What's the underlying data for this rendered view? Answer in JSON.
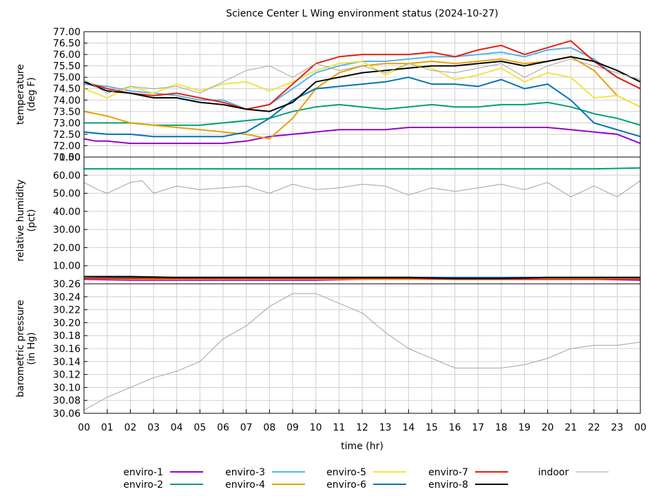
{
  "chart_data": {
    "type": "line",
    "title": "Science Center L Wing environment status (2024-10-27)",
    "xlabel": "time (hr)",
    "x_ticks": [
      "00",
      "01",
      "02",
      "03",
      "04",
      "05",
      "06",
      "07",
      "08",
      "09",
      "10",
      "11",
      "12",
      "13",
      "14",
      "15",
      "16",
      "17",
      "18",
      "19",
      "20",
      "21",
      "22",
      "23",
      "00"
    ],
    "xlim": [
      0,
      24
    ],
    "legend_position": "bottom",
    "grid": true,
    "colors": {
      "enviro-1": "#9400d3",
      "enviro-2": "#009e73",
      "enviro-3": "#56b4e9",
      "enviro-4": "#e69f00",
      "enviro-5": "#f0e442",
      "enviro-6": "#0072b2",
      "enviro-7": "#e51e10",
      "enviro-8": "#000000",
      "indoor": "#a0a0a0"
    },
    "legend": [
      "enviro-1",
      "enviro-2",
      "enviro-3",
      "enviro-4",
      "enviro-5",
      "enviro-6",
      "enviro-7",
      "enviro-8",
      "indoor"
    ],
    "panels": [
      {
        "ylabel": [
          "temperature",
          "(deg F)"
        ],
        "ylim": [
          71.5,
          77.0
        ],
        "y_ticks": [
          "71.50",
          "72.00",
          "72.50",
          "73.00",
          "73.50",
          "74.00",
          "74.50",
          "75.00",
          "75.50",
          "76.00",
          "76.50",
          "77.00"
        ],
        "tick_values": [
          71.5,
          72.0,
          72.5,
          73.0,
          73.5,
          74.0,
          74.5,
          75.0,
          75.5,
          76.0,
          76.5,
          77.0
        ],
        "series": [
          {
            "name": "enviro-1",
            "x": [
              0,
              0.5,
              1,
              2,
              3,
              4,
              5,
              6,
              7,
              8,
              9,
              10,
              11,
              12,
              13,
              14,
              15,
              16,
              17,
              18,
              19,
              20,
              21,
              22,
              23,
              24
            ],
            "y": [
              72.3,
              72.2,
              72.2,
              72.1,
              72.1,
              72.1,
              72.1,
              72.1,
              72.2,
              72.4,
              72.5,
              72.6,
              72.7,
              72.7,
              72.7,
              72.8,
              72.8,
              72.8,
              72.8,
              72.8,
              72.8,
              72.8,
              72.7,
              72.6,
              72.5,
              72.1
            ]
          },
          {
            "name": "enviro-2",
            "x": [
              0,
              1,
              2,
              3,
              4,
              5,
              6,
              7,
              8,
              9,
              10,
              11,
              12,
              13,
              14,
              15,
              16,
              17,
              18,
              19,
              20,
              21,
              22,
              23,
              24
            ],
            "y": [
              73.0,
              73.0,
              73.0,
              72.9,
              72.9,
              72.9,
              73.0,
              73.1,
              73.2,
              73.5,
              73.7,
              73.8,
              73.7,
              73.6,
              73.7,
              73.8,
              73.7,
              73.7,
              73.8,
              73.8,
              73.9,
              73.7,
              73.4,
              73.2,
              72.9
            ]
          },
          {
            "name": "enviro-3",
            "x": [
              0,
              1,
              2,
              3,
              4,
              5,
              6,
              7,
              8,
              9,
              10,
              11,
              12,
              13,
              14,
              15,
              16,
              17,
              18,
              19,
              20,
              21,
              22,
              23,
              24
            ],
            "y": [
              74.7,
              74.6,
              74.4,
              74.3,
              74.2,
              74.0,
              74.0,
              73.6,
              73.8,
              74.5,
              75.2,
              75.5,
              75.7,
              75.7,
              75.8,
              75.9,
              75.9,
              76.0,
              76.1,
              75.9,
              76.2,
              76.3,
              75.8,
              75.0,
              74.5
            ]
          },
          {
            "name": "enviro-4",
            "x": [
              0,
              1,
              2,
              3,
              4,
              5,
              6,
              7,
              8,
              9,
              10,
              11,
              12,
              13,
              14,
              15,
              16,
              17,
              18,
              19,
              20,
              21,
              22,
              23,
              24
            ],
            "y": [
              73.5,
              73.3,
              73.0,
              72.9,
              72.8,
              72.7,
              72.6,
              72.5,
              72.3,
              73.2,
              74.5,
              75.2,
              75.5,
              75.6,
              75.6,
              75.7,
              75.6,
              75.7,
              75.8,
              75.6,
              75.7,
              75.9,
              75.3,
              74.2,
              73.7
            ]
          },
          {
            "name": "enviro-5",
            "x": [
              0,
              1,
              2,
              3,
              4,
              5,
              6,
              7,
              8,
              9,
              10,
              11,
              12,
              13,
              14,
              15,
              16,
              17,
              18,
              19,
              20,
              21,
              22,
              23,
              24
            ],
            "y": [
              74.5,
              74.1,
              74.6,
              74.3,
              74.7,
              74.4,
              74.7,
              74.8,
              74.4,
              74.8,
              75.3,
              75.6,
              75.7,
              75.1,
              75.6,
              75.4,
              74.9,
              75.1,
              75.4,
              74.8,
              75.2,
              75.0,
              74.1,
              74.2,
              73.7
            ]
          },
          {
            "name": "enviro-6",
            "x": [
              0,
              1,
              2,
              3,
              4,
              5,
              6,
              7,
              8,
              9,
              10,
              11,
              12,
              13,
              14,
              15,
              16,
              17,
              18,
              19,
              20,
              21,
              22,
              23,
              24
            ],
            "y": [
              72.6,
              72.5,
              72.5,
              72.4,
              72.4,
              72.4,
              72.4,
              72.6,
              73.2,
              74.0,
              74.5,
              74.6,
              74.7,
              74.8,
              75.0,
              74.7,
              74.7,
              74.6,
              74.9,
              74.5,
              74.7,
              74.0,
              73.0,
              72.7,
              72.4
            ]
          },
          {
            "name": "enviro-7",
            "x": [
              0,
              1,
              2,
              3,
              4,
              5,
              6,
              7,
              8,
              9,
              10,
              11,
              12,
              13,
              14,
              15,
              16,
              17,
              18,
              19,
              20,
              21,
              22,
              23,
              24
            ],
            "y": [
              74.8,
              74.5,
              74.3,
              74.2,
              74.3,
              74.1,
              73.9,
              73.6,
              73.8,
              74.7,
              75.6,
              75.9,
              76.0,
              76.0,
              76.0,
              76.1,
              75.9,
              76.2,
              76.4,
              76.0,
              76.3,
              76.6,
              75.7,
              75.0,
              74.5
            ]
          },
          {
            "name": "enviro-8",
            "x": [
              0,
              1,
              2,
              3,
              4,
              5,
              6,
              7,
              8,
              9,
              10,
              11,
              12,
              13,
              14,
              15,
              16,
              17,
              18,
              19,
              20,
              21,
              22,
              23,
              24
            ],
            "y": [
              74.8,
              74.4,
              74.3,
              74.1,
              74.1,
              73.9,
              73.8,
              73.6,
              73.5,
              73.9,
              74.8,
              75.0,
              75.2,
              75.3,
              75.4,
              75.5,
              75.5,
              75.6,
              75.7,
              75.5,
              75.7,
              75.9,
              75.7,
              75.3,
              74.8
            ]
          },
          {
            "name": "indoor",
            "x": [
              0,
              1,
              2,
              3,
              4,
              5,
              6,
              7,
              8,
              9,
              10,
              11,
              12,
              13,
              14,
              15,
              16,
              17,
              18,
              19,
              20,
              21,
              22,
              23,
              24
            ],
            "y": [
              74.9,
              74.3,
              74.6,
              74.5,
              74.6,
              74.3,
              74.8,
              75.3,
              75.5,
              75.0,
              75.6,
              75.3,
              75.5,
              75.2,
              75.6,
              75.3,
              75.2,
              75.4,
              75.6,
              75.0,
              75.5,
              75.8,
              75.5,
              75.2,
              74.9
            ]
          }
        ]
      },
      {
        "ylabel": [
          "relative humidity",
          "(pct)"
        ],
        "ylim": [
          0,
          70
        ],
        "y_ticks": [
          "10.00",
          "20.00",
          "30.00",
          "40.00",
          "50.00",
          "60.00",
          "70.00"
        ],
        "tick_values": [
          10,
          20,
          30,
          40,
          50,
          60,
          70
        ],
        "series": [
          {
            "name": "enviro-1",
            "x": [
              0,
              2,
              4,
              6,
              8,
              10,
              12,
              14,
              16,
              18,
              20,
              22,
              24
            ],
            "y": [
              2.5,
              2.0,
              2.0,
              2.0,
              2.0,
              2.0,
              2.5,
              3.0,
              2.5,
              2.5,
              2.5,
              2.5,
              2.0
            ]
          },
          {
            "name": "enviro-2",
            "x": [
              0,
              2,
              4,
              6,
              8,
              10,
              12,
              14,
              16,
              18,
              20,
              22,
              24
            ],
            "y": [
              63.5,
              63.5,
              63.5,
              63.5,
              63.5,
              63.5,
              63.5,
              63.5,
              63.5,
              63.5,
              63.5,
              63.5,
              64.0
            ]
          },
          {
            "name": "enviro-3",
            "x": [
              0,
              2,
              4,
              6,
              8,
              10,
              12,
              14,
              16,
              18,
              20,
              22,
              24
            ],
            "y": [
              4.0,
              3.5,
              3.5,
              3.5,
              3.5,
              3.5,
              3.5,
              3.5,
              3.0,
              3.0,
              3.5,
              3.5,
              3.5
            ]
          },
          {
            "name": "enviro-4",
            "x": [
              0,
              2,
              4,
              6,
              8,
              10,
              12,
              14,
              16,
              18,
              20,
              22,
              24
            ],
            "y": [
              3.0,
              2.5,
              2.5,
              2.5,
              2.5,
              2.5,
              2.5,
              2.5,
              2.5,
              2.5,
              2.5,
              2.5,
              2.5
            ]
          },
          {
            "name": "enviro-5",
            "x": [
              0,
              2,
              4,
              6,
              8,
              10,
              12,
              14,
              16,
              18,
              20,
              22,
              24
            ],
            "y": [
              3.5,
              3.0,
              3.0,
              3.0,
              3.0,
              3.0,
              3.0,
              3.0,
              3.0,
              3.0,
              3.0,
              3.0,
              3.0
            ]
          },
          {
            "name": "enviro-6",
            "x": [
              0,
              2,
              4,
              6,
              8,
              10,
              12,
              14,
              16,
              18,
              20,
              22,
              24
            ],
            "y": [
              4.0,
              3.5,
              3.5,
              3.5,
              3.5,
              3.5,
              3.5,
              3.5,
              3.5,
              3.5,
              3.5,
              3.5,
              3.5
            ]
          },
          {
            "name": "enviro-7",
            "x": [
              0,
              2,
              4,
              6,
              8,
              10,
              12,
              14,
              16,
              18,
              20,
              22,
              24
            ],
            "y": [
              3.0,
              3.0,
              3.0,
              3.0,
              3.0,
              3.0,
              3.0,
              3.0,
              2.5,
              2.5,
              2.5,
              2.5,
              2.5
            ]
          },
          {
            "name": "enviro-8",
            "x": [
              0,
              2,
              4,
              6,
              8,
              10,
              12,
              14,
              16,
              18,
              20,
              22,
              24
            ],
            "y": [
              4.0,
              4.0,
              3.5,
              3.5,
              3.5,
              3.5,
              3.5,
              3.5,
              3.0,
              3.0,
              3.5,
              3.5,
              3.5
            ]
          },
          {
            "name": "indoor",
            "x": [
              0,
              0.6,
              1,
              1.5,
              2,
              2.5,
              3,
              4,
              5,
              6,
              7,
              7.5,
              8,
              9,
              10,
              11,
              12,
              13,
              14,
              15,
              16,
              17,
              18,
              19,
              20,
              21,
              22,
              23,
              24
            ],
            "y": [
              56,
              52,
              50,
              53,
              56,
              57,
              50,
              54,
              52,
              53,
              54,
              52,
              50,
              55,
              52,
              53,
              55,
              54,
              49,
              53,
              51,
              53,
              55,
              52,
              56,
              48,
              54,
              48,
              57
            ]
          }
        ]
      },
      {
        "ylabel": [
          "barometric pressure",
          "(in Hg)"
        ],
        "ylim": [
          30.06,
          30.26
        ],
        "y_ticks": [
          "30.06",
          "30.08",
          "30.10",
          "30.12",
          "30.14",
          "30.16",
          "30.18",
          "30.20",
          "30.22",
          "30.24",
          "30.26"
        ],
        "tick_values": [
          30.06,
          30.08,
          30.1,
          30.12,
          30.14,
          30.16,
          30.18,
          30.2,
          30.22,
          30.24,
          30.26
        ],
        "series": [
          {
            "name": "indoor",
            "x": [
              0,
              1,
              2,
              3,
              4,
              5,
              6,
              7,
              8,
              9,
              10,
              11,
              12,
              13,
              14,
              15,
              16,
              17,
              18,
              19,
              20,
              21,
              22,
              23,
              24
            ],
            "y": [
              30.065,
              30.085,
              30.1,
              30.115,
              30.125,
              30.14,
              30.175,
              30.195,
              30.225,
              30.245,
              30.245,
              30.23,
              30.215,
              30.185,
              30.16,
              30.145,
              30.13,
              30.13,
              30.13,
              30.135,
              30.145,
              30.16,
              30.165,
              30.165,
              30.17
            ]
          }
        ]
      }
    ]
  }
}
